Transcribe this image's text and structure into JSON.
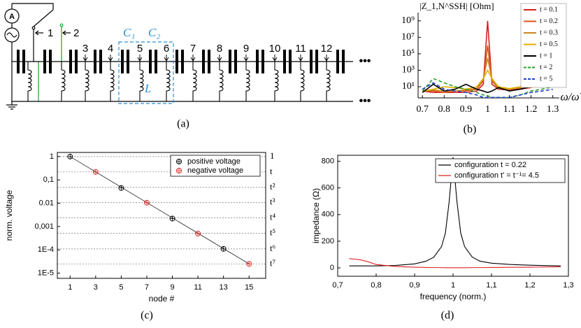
{
  "panels": [
    "(a)",
    "(b)",
    "(c)",
    "(d)"
  ],
  "diagram": {
    "source": "A",
    "nodes": [
      "1",
      "2",
      "3",
      "4",
      "5",
      "6",
      "7",
      "8",
      "9",
      "10",
      "11",
      "12"
    ],
    "capacitors": [
      "C₁",
      "C₂"
    ],
    "inductor": "L",
    "continuation": "•••"
  },
  "chart_data": [
    {
      "type": "line",
      "ylabel": "|Z_1,N^SSH| [Ohm]",
      "xlabel": "ω/ω̃",
      "x": [
        0.7,
        0.75,
        0.8,
        0.85,
        0.9,
        0.95,
        0.98,
        1.0,
        1.02,
        1.05,
        1.1,
        1.15,
        1.2,
        1.25,
        1.3
      ],
      "series": [
        {
          "name": "t = 0.1",
          "color": "#d62020",
          "dash": false,
          "values": [
            3,
            2,
            2,
            2,
            2,
            3,
            20,
            1000000000,
            20,
            5,
            4,
            5,
            8,
            20,
            30
          ]
        },
        {
          "name": "t = 0.2",
          "color": "#d9541a",
          "dash": false,
          "values": [
            3,
            3,
            2,
            3,
            3,
            5,
            50,
            1000000,
            50,
            6,
            5,
            6,
            10,
            20,
            30
          ]
        },
        {
          "name": "t = 0.3",
          "color": "#c8861c",
          "dash": false,
          "values": [
            3,
            4,
            3,
            3,
            4,
            6,
            80,
            30000,
            80,
            6,
            5,
            8,
            15,
            300,
            10
          ]
        },
        {
          "name": "t = 0.5",
          "color": "#e0b000",
          "dash": false,
          "values": [
            3,
            5,
            10,
            8,
            5,
            10,
            100,
            1000,
            100,
            10,
            6,
            10,
            1000,
            200,
            10
          ]
        },
        {
          "name": "t = 1",
          "color": "#000000",
          "dash": false,
          "values": [
            2,
            20,
            3,
            5,
            20,
            5,
            3,
            2,
            3,
            8,
            3,
            5,
            10,
            20,
            30
          ]
        },
        {
          "name": "t = 2",
          "color": "#2ca02c",
          "dash": true,
          "values": [
            3,
            100,
            30,
            10,
            5,
            2,
            1,
            0.8,
            0.5,
            0.5,
            0.5,
            1,
            3,
            5,
            10
          ]
        },
        {
          "name": "t = 5",
          "color": "#1f3fd0",
          "dash": true,
          "values": [
            5,
            30,
            5,
            3,
            2,
            1,
            0.5,
            0.5,
            0.5,
            0.5,
            0.5,
            1,
            2,
            3,
            5
          ]
        }
      ],
      "xlim": [
        0.68,
        1.33
      ],
      "xticks": [
        0.7,
        0.8,
        0.9,
        1.0,
        1.1,
        1.2,
        1.3
      ],
      "ylim": [
        0.44,
        10000000000
      ],
      "yticks": [
        {
          "value": 10,
          "label": "10¹"
        },
        {
          "value": 1000,
          "label": "10³"
        },
        {
          "value": 100000,
          "label": "10⁵"
        },
        {
          "value": 10000000,
          "label": "10⁷"
        },
        {
          "value": 1000000000,
          "label": "10⁹"
        }
      ],
      "ylog": true,
      "legend": "upper right"
    },
    {
      "type": "scatter",
      "xlabel": "node #",
      "ylabel": "norm. voltage",
      "series": [
        {
          "name": "positive voltage",
          "color": "#000000",
          "x": [
            1,
            5,
            9,
            13
          ],
          "values": [
            1,
            0.045,
            0.0022,
            0.00011
          ]
        },
        {
          "name": "negative voltage",
          "color": "#e02020",
          "x": [
            3,
            7,
            11,
            15
          ],
          "values": [
            0.22,
            0.0105,
            0.0005,
            2.5e-05
          ]
        }
      ],
      "xlim": [
        0,
        16.3
      ],
      "xticks": [
        1,
        3,
        5,
        7,
        9,
        11,
        13,
        15
      ],
      "ylim": [
        6e-06,
        1.5
      ],
      "yticks": [
        1,
        {
          "value": 0.1,
          "label": "0,1"
        },
        0.01,
        {
          "value": 0.001,
          "label": "0,001"
        },
        {
          "value": 0.0001,
          "label": "1E-4"
        },
        {
          "value": 1e-05,
          "label": "1E-5"
        }
      ],
      "ylog": true,
      "y2lim": [
        6e-06,
        1.5
      ],
      "y2ticks": [
        1,
        {
          "value": 0.22,
          "label": "t"
        },
        {
          "value": 0.048,
          "label": "t²"
        },
        {
          "value": 0.0106,
          "label": "t³"
        },
        {
          "value": 0.00234,
          "label": "t⁴"
        },
        {
          "value": 0.00052,
          "label": "t⁵"
        },
        {
          "value": 0.00011,
          "label": "t⁶"
        },
        {
          "value": 2.5e-05,
          "label": "t⁷"
        }
      ],
      "legend": "upper right"
    },
    {
      "type": "line",
      "xlabel": "frequency  (norm.)",
      "ylabel": "impedance (Ω)",
      "x": [
        0.73,
        0.76,
        0.78,
        0.8,
        0.85,
        0.9,
        0.93,
        0.95,
        0.97,
        0.98,
        0.99,
        1.0,
        1.01,
        1.02,
        1.03,
        1.05,
        1.07,
        1.1,
        1.15,
        1.2,
        1.28
      ],
      "series": [
        {
          "name": "configuration t = 0.22",
          "color": "#000000",
          "values": [
            15,
            15,
            15,
            15,
            18,
            30,
            50,
            80,
            160,
            260,
            500,
            830,
            500,
            260,
            160,
            80,
            50,
            35,
            25,
            20,
            15
          ]
        },
        {
          "name": "configuration t' = t⁻¹= 4.5",
          "color": "#e02020",
          "values": [
            70,
            60,
            45,
            25,
            10,
            5,
            3,
            2,
            2,
            1,
            1,
            1,
            1,
            1,
            1,
            2,
            2,
            3,
            4,
            5,
            8
          ]
        }
      ],
      "xlim": [
        0.7,
        1.3
      ],
      "xticks": [
        {
          "value": 0.7,
          "label": "0,7"
        },
        {
          "value": 0.8,
          "label": "0,8"
        },
        {
          "value": 0.9,
          "label": "0,9"
        },
        1,
        {
          "value": 1.1,
          "label": "1,1"
        },
        {
          "value": 1.2,
          "label": "1,2"
        },
        {
          "value": 1.3,
          "label": "1,3"
        }
      ],
      "ylim": [
        -63,
        845
      ],
      "yticks": [
        0,
        200,
        400,
        600,
        800
      ],
      "legend": "upper right"
    }
  ]
}
